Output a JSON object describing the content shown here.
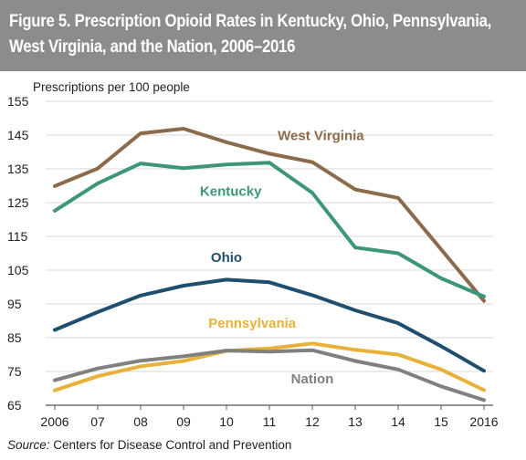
{
  "header": {
    "title": "Figure 5. Prescription Opioid Rates in Kentucky, Ohio, Pennsylvania, West Virginia, and the Nation, 2006–2016"
  },
  "footer": {
    "source_label": "Source:",
    "source_text": " Centers for Disease Control and Prevention"
  },
  "colors": {
    "title_bar": "#8c8c8c",
    "axis": "#555555"
  },
  "chart_data": {
    "type": "line",
    "title": "Figure 5. Prescription Opioid Rates in Kentucky, Ohio, Pennsylvania, West Virginia, and the Nation, 2006–2016",
    "xlabel": "",
    "ylabel": "Prescriptions per 100 people",
    "x": [
      "2006",
      "07",
      "08",
      "09",
      "10",
      "11",
      "12",
      "13",
      "14",
      "15",
      "2016"
    ],
    "ylim": [
      65,
      155
    ],
    "yticks": [
      65,
      75,
      85,
      95,
      105,
      115,
      125,
      135,
      145,
      155
    ],
    "grid": true,
    "legend": "inline labels",
    "series": [
      {
        "name": "West Virginia",
        "color": "#8c6b4d",
        "values": [
          129.9,
          135.1,
          145.5,
          146.9,
          142.9,
          139.5,
          137.0,
          128.9,
          126.4,
          111.2,
          95.9
        ]
      },
      {
        "name": "Kentucky",
        "color": "#3d9678",
        "values": [
          122.6,
          130.7,
          136.6,
          135.2,
          136.3,
          136.8,
          127.9,
          111.7,
          110.0,
          102.6,
          97.2
        ]
      },
      {
        "name": "Ohio",
        "color": "#1f4e6e",
        "values": [
          87.3,
          92.6,
          97.5,
          100.4,
          102.2,
          101.4,
          97.6,
          93.1,
          89.3,
          82.5,
          75.2
        ]
      },
      {
        "name": "Pennsylvania",
        "color": "#e8b13a",
        "values": [
          69.4,
          73.6,
          76.5,
          78.1,
          81.1,
          81.8,
          83.3,
          81.4,
          80.0,
          75.6,
          69.5
        ]
      },
      {
        "name": "Nation",
        "color": "#808080",
        "values": [
          72.4,
          75.9,
          78.2,
          79.5,
          81.2,
          80.9,
          81.3,
          78.1,
          75.6,
          70.6,
          66.5
        ]
      }
    ]
  }
}
